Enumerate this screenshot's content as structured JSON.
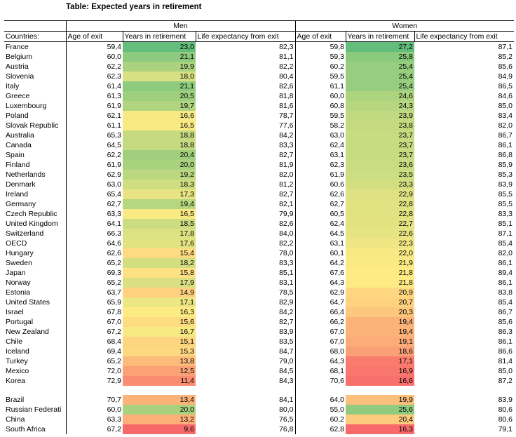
{
  "title": "Table: Expected years in retirement",
  "groups": {
    "men": "Men",
    "women": "Women"
  },
  "headers": [
    "Countries:",
    "Age of exit",
    "Years in retirement",
    "Life expectancy from exit",
    "Age of exit",
    "Years in retirement",
    "Life expectancy from exit"
  ],
  "colors": {
    "high": "#63be7b",
    "mid": "#ffeb84",
    "low": "#f8696b"
  },
  "rows": [
    [
      "France",
      "59,4",
      "23,0",
      "82,3",
      "59,8",
      "27,2",
      "87,1"
    ],
    [
      "Belgium",
      "60,0",
      "21,1",
      "81,1",
      "59,3",
      "25,8",
      "85,2"
    ],
    [
      "Austria",
      "62,2",
      "19,9",
      "82,2",
      "60,2",
      "25,4",
      "85,6"
    ],
    [
      "Slovenia",
      "62,3",
      "18,0",
      "80,4",
      "59,5",
      "25,4",
      "84,9"
    ],
    [
      "Italy",
      "61,4",
      "21,1",
      "82,6",
      "61,1",
      "25,4",
      "86,5"
    ],
    [
      "Greece",
      "61,3",
      "20,5",
      "81,8",
      "60,0",
      "24,6",
      "84,6"
    ],
    [
      "Luxembourg",
      "61,9",
      "19,7",
      "81,6",
      "60,8",
      "24,3",
      "85,0"
    ],
    [
      "Poland",
      "62,1",
      "16,6",
      "78,7",
      "59,5",
      "23,9",
      "83,4"
    ],
    [
      "Slovak Republic",
      "61,1",
      "16,5",
      "77,6",
      "58,2",
      "23,8",
      "82,0"
    ],
    [
      "Australia",
      "65,3",
      "18,8",
      "84,2",
      "63,0",
      "23,7",
      "86,7"
    ],
    [
      "Canada",
      "64,5",
      "18,8",
      "83,3",
      "62,4",
      "23,7",
      "86,1"
    ],
    [
      "Spain",
      "62,2",
      "20,4",
      "82,7",
      "63,1",
      "23,7",
      "86,8"
    ],
    [
      "Finland",
      "61,9",
      "20,0",
      "81,9",
      "62,3",
      "23,6",
      "85,9"
    ],
    [
      "Netherlands",
      "62,9",
      "19,2",
      "82,0",
      "61,9",
      "23,5",
      "85,3"
    ],
    [
      "Denmark",
      "63,0",
      "18,3",
      "81,2",
      "60,6",
      "23,3",
      "83,9"
    ],
    [
      "Ireland",
      "65,4",
      "17,3",
      "82,7",
      "62,6",
      "22,9",
      "85,5"
    ],
    [
      "Germany",
      "62,7",
      "19,4",
      "82,1",
      "62,7",
      "22,8",
      "85,5"
    ],
    [
      "Czech Republic",
      "63,3",
      "16,5",
      "79,9",
      "60,5",
      "22,8",
      "83,3"
    ],
    [
      "United Kingdom",
      "64,1",
      "18,5",
      "82,6",
      "62,4",
      "22,7",
      "85,1"
    ],
    [
      "Switzerland",
      "66,3",
      "17,8",
      "84,0",
      "64,5",
      "22,6",
      "87,1"
    ],
    [
      "OECD",
      "64,6",
      "17,6",
      "82,2",
      "63,1",
      "22,3",
      "85,4"
    ],
    [
      "Hungary",
      "62,6",
      "15,4",
      "78,0",
      "60,1",
      "22,0",
      "82,0"
    ],
    [
      "Sweden",
      "65,2",
      "18,2",
      "83,3",
      "64,2",
      "21,9",
      "86,1"
    ],
    [
      "Japan",
      "69,3",
      "15,8",
      "85,1",
      "67,6",
      "21,8",
      "89,4"
    ],
    [
      "Norway",
      "65,2",
      "17,9",
      "83,1",
      "64,3",
      "21,8",
      "86,1"
    ],
    [
      "Estonia",
      "63,7",
      "14,9",
      "78,5",
      "62,9",
      "20,9",
      "83,8"
    ],
    [
      "United States",
      "65,9",
      "17,1",
      "82,9",
      "64,7",
      "20,7",
      "85,4"
    ],
    [
      "Israel",
      "67,8",
      "16,3",
      "84,2",
      "66,4",
      "20,3",
      "86,7"
    ],
    [
      "Portugal",
      "67,0",
      "15,6",
      "82,7",
      "66,2",
      "19,4",
      "85,6"
    ],
    [
      "New Zealand",
      "67,2",
      "16,7",
      "83,9",
      "67,0",
      "19,4",
      "86,3"
    ],
    [
      "Chile",
      "68,4",
      "15,1",
      "83,5",
      "67,0",
      "19,1",
      "86,1"
    ],
    [
      "Iceland",
      "69,4",
      "15,3",
      "84,7",
      "68,0",
      "18,6",
      "86,6"
    ],
    [
      "Turkey",
      "65,2",
      "13,8",
      "79,0",
      "64,3",
      "17,1",
      "81,4"
    ],
    [
      "Mexico",
      "72,0",
      "12,5",
      "84,5",
      "68,1",
      "16,9",
      "85,0"
    ],
    [
      "Korea",
      "72,9",
      "11,4",
      "84,3",
      "70,6",
      "16,6",
      "87,2"
    ]
  ],
  "extra_rows": [
    [
      "Brazil",
      "70,7",
      "13,4",
      "84,1",
      "64,0",
      "19,9",
      "83,9"
    ],
    [
      "Russian Federati",
      "60,0",
      "20,0",
      "80,0",
      "55,0",
      "25,6",
      "80,6"
    ],
    [
      "China",
      "63,3",
      "13,2",
      "76,5",
      "60,2",
      "20,4",
      "80,6"
    ],
    [
      "South Africa",
      "67,2",
      "9,6",
      "76,8",
      "62,8",
      "16,3",
      "79,1"
    ]
  ]
}
